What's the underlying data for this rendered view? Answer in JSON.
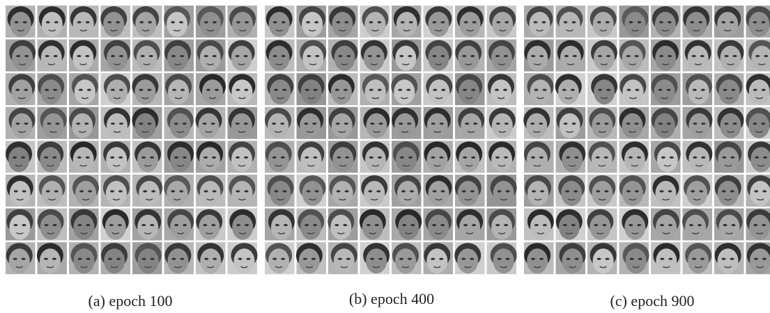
{
  "panels": [
    {
      "caption": "(a) epoch 100"
    },
    {
      "caption": "(b) epoch 400"
    },
    {
      "caption": "(c) epoch 900"
    }
  ]
}
